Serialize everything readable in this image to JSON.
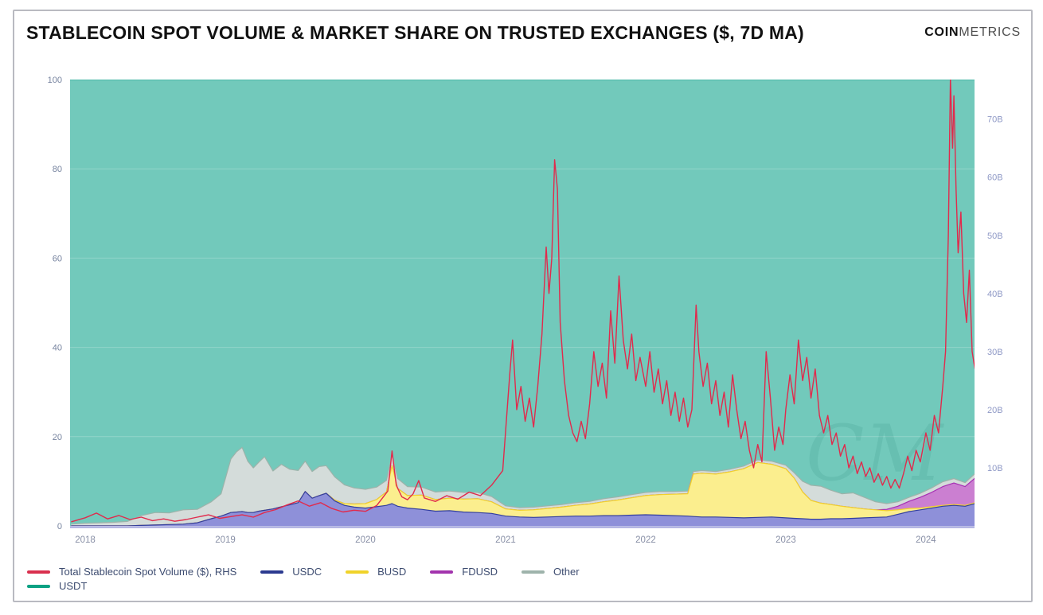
{
  "header": {
    "title": "STABLECOIN SPOT VOLUME & MARKET SHARE ON TRUSTED EXCHANGES ($, 7D MA)",
    "logo_bold": "COIN",
    "logo_light": "METRICS"
  },
  "legend": {
    "rows": [
      [
        {
          "label": "Total Stablecoin Spot Volume ($), RHS",
          "color": "#d9304e"
        },
        {
          "label": "USDC",
          "color": "#2b3a8f"
        },
        {
          "label": "BUSD",
          "color": "#f0d32a"
        },
        {
          "label": "FDUSD",
          "color": "#a234ad"
        },
        {
          "label": "Other",
          "color": "#9eb3ab"
        }
      ],
      [
        {
          "label": "USDT",
          "color": "#0ba183"
        }
      ]
    ]
  },
  "chart_data": {
    "type": "area",
    "subtype": "stacked-area-with-line",
    "title": "STABLECOIN SPOT VOLUME & MARKET SHARE ON TRUSTED EXCHANGES ($, 7D MA)",
    "watermark": "CM",
    "grid": "faint horizontal at 20/40/60/80",
    "legend_position": "bottom-left",
    "x_domain": [
      2017.892,
      2024.347
    ],
    "x_ticks": [
      2018,
      2019,
      2020,
      2021,
      2022,
      2023,
      2024
    ],
    "y_left": {
      "unit": "percent market share",
      "min": 0,
      "max": 100,
      "ticks": [
        0,
        20,
        40,
        60,
        80,
        100
      ]
    },
    "y_right": {
      "unit": "USD volume",
      "min": 0,
      "max": 76.8,
      "ticks": [
        10,
        20,
        30,
        40,
        50,
        60,
        70
      ],
      "tick_labels": [
        "10B",
        "20B",
        "30B",
        "40B",
        "50B",
        "60B",
        "70B"
      ]
    },
    "colors": {
      "usdt_fill": "#72c9bb",
      "usdt_stroke": "#2fae99",
      "usdc_fill": "#8e90d9",
      "usdc_stroke": "#333f9e",
      "busd_fill": "#fbee8e",
      "busd_stroke": "#f2d22b",
      "fdusd_fill": "#cb7fd1",
      "fdusd_stroke": "#a62fb3",
      "other_fill": "#d4dcda",
      "other_stroke": "#9cb3aa",
      "volume_line": "#e12a4c",
      "axis_text_left": "#76839f",
      "axis_text_right": "#8f99c6",
      "axis_text_x": "#888fa6",
      "axis_line": "#a9abdf"
    },
    "share_x": [
      2017.9,
      2018.0,
      2018.1,
      2018.2,
      2018.3,
      2018.4,
      2018.5,
      2018.6,
      2018.7,
      2018.8,
      2018.9,
      2018.97,
      2019.04,
      2019.08,
      2019.12,
      2019.16,
      2019.2,
      2019.24,
      2019.28,
      2019.34,
      2019.4,
      2019.46,
      2019.52,
      2019.57,
      2019.62,
      2019.67,
      2019.72,
      2019.78,
      2019.85,
      2019.92,
      2020.0,
      2020.08,
      2020.15,
      2020.19,
      2020.23,
      2020.3,
      2020.4,
      2020.5,
      2020.6,
      2020.7,
      2020.8,
      2020.9,
      2021.0,
      2021.1,
      2021.2,
      2021.3,
      2021.4,
      2021.5,
      2021.6,
      2021.7,
      2021.8,
      2021.9,
      2022.0,
      2022.1,
      2022.2,
      2022.3,
      2022.34,
      2022.4,
      2022.5,
      2022.6,
      2022.7,
      2022.8,
      2022.9,
      2023.0,
      2023.06,
      2023.12,
      2023.18,
      2023.25,
      2023.32,
      2023.4,
      2023.48,
      2023.56,
      2023.64,
      2023.72,
      2023.8,
      2023.88,
      2023.96,
      2024.04,
      2024.12,
      2024.2,
      2024.28,
      2024.35
    ],
    "share_series": [
      {
        "name": "USDC",
        "stack_order": 1,
        "values": [
          0,
          0,
          0,
          0,
          0,
          0.1,
          0.2,
          0.3,
          0.4,
          0.7,
          1.6,
          2.2,
          3.0,
          3.1,
          3.2,
          3.0,
          3.0,
          3.3,
          3.5,
          3.8,
          4.3,
          4.7,
          5.2,
          7.7,
          6.2,
          6.8,
          7.3,
          5.6,
          4.6,
          4.2,
          4.0,
          4.3,
          4.6,
          5.0,
          4.4,
          4.0,
          3.7,
          3.3,
          3.4,
          3.1,
          3.0,
          2.8,
          2.2,
          2.0,
          1.9,
          2.0,
          2.1,
          2.2,
          2.2,
          2.3,
          2.3,
          2.4,
          2.5,
          2.4,
          2.3,
          2.2,
          2.1,
          2.0,
          2.0,
          1.9,
          1.8,
          1.9,
          2.0,
          1.8,
          1.7,
          1.6,
          1.5,
          1.5,
          1.6,
          1.6,
          1.7,
          1.8,
          1.9,
          2.0,
          2.6,
          3.2,
          3.6,
          4.0,
          4.4,
          4.6,
          4.4,
          5.0
        ]
      },
      {
        "name": "BUSD",
        "stack_order": 2,
        "values": [
          0,
          0,
          0,
          0,
          0,
          0,
          0,
          0,
          0,
          0,
          0,
          0,
          0,
          0,
          0,
          0,
          0,
          0,
          0,
          0,
          0,
          0,
          0,
          0,
          0,
          0,
          0,
          0.2,
          0.4,
          0.7,
          1.0,
          1.6,
          3.0,
          8.5,
          4.0,
          2.8,
          3.2,
          2.6,
          2.8,
          2.9,
          3.1,
          2.6,
          1.6,
          1.5,
          1.7,
          1.9,
          2.1,
          2.4,
          2.7,
          3.1,
          3.5,
          3.9,
          4.3,
          4.6,
          4.8,
          5.0,
          9.5,
          9.8,
          9.6,
          10.2,
          11.0,
          12.3,
          11.8,
          11.0,
          9.0,
          6.0,
          4.2,
          3.6,
          3.2,
          2.8,
          2.4,
          2.0,
          1.7,
          1.4,
          1.0,
          0.7,
          0.4,
          0.3,
          0.2,
          0.2,
          0.2,
          0.2
        ]
      },
      {
        "name": "FDUSD",
        "stack_order": 3,
        "values": [
          0,
          0,
          0,
          0,
          0,
          0,
          0,
          0,
          0,
          0,
          0,
          0,
          0,
          0,
          0,
          0,
          0,
          0,
          0,
          0,
          0,
          0,
          0,
          0,
          0,
          0,
          0,
          0,
          0,
          0,
          0,
          0,
          0,
          0,
          0,
          0,
          0,
          0,
          0,
          0,
          0,
          0,
          0,
          0,
          0,
          0,
          0,
          0,
          0,
          0,
          0,
          0,
          0,
          0,
          0,
          0,
          0,
          0,
          0,
          0,
          0,
          0,
          0,
          0,
          0,
          0,
          0,
          0,
          0,
          0,
          0,
          0,
          0,
          0.3,
          0.8,
          1.6,
          2.4,
          3.2,
          4.2,
          4.8,
          4.2,
          5.5
        ]
      },
      {
        "name": "Other",
        "stack_order": 4,
        "values": [
          0.4,
          0.6,
          0.7,
          0.8,
          1.0,
          2.2,
          2.8,
          2.6,
          3.2,
          3.0,
          3.8,
          5.0,
          12.0,
          13.5,
          14.4,
          11.5,
          10.0,
          11.0,
          12.0,
          8.5,
          9.5,
          8.0,
          7.2,
          6.8,
          6.0,
          6.5,
          6.2,
          5.2,
          4.2,
          3.6,
          3.2,
          2.8,
          2.6,
          2.5,
          2.2,
          2.0,
          1.8,
          1.7,
          1.6,
          1.5,
          1.4,
          1.2,
          0.7,
          0.6,
          0.6,
          0.6,
          0.6,
          0.6,
          0.6,
          0.7,
          0.7,
          0.7,
          0.7,
          0.7,
          0.6,
          0.6,
          0.6,
          0.6,
          0.6,
          0.6,
          0.6,
          0.6,
          0.7,
          0.8,
          1.2,
          2.4,
          3.4,
          3.8,
          3.2,
          2.8,
          3.3,
          2.6,
          1.8,
          1.3,
          1.0,
          0.9,
          0.9,
          1.0,
          1.1,
          1.0,
          0.9,
          1.0
        ]
      },
      {
        "name": "USDT",
        "stack_order": 5,
        "note": "fills remainder of stack up to 100%"
      }
    ],
    "volume_series": {
      "name": "Total Stablecoin Spot Volume ($), RHS",
      "axis": "right",
      "unit": "billion USD",
      "x": [
        2017.9,
        2018.0,
        2018.08,
        2018.16,
        2018.24,
        2018.32,
        2018.4,
        2018.48,
        2018.56,
        2018.64,
        2018.72,
        2018.8,
        2018.88,
        2018.96,
        2019.04,
        2019.12,
        2019.2,
        2019.28,
        2019.36,
        2019.44,
        2019.52,
        2019.6,
        2019.68,
        2019.76,
        2019.84,
        2019.92,
        2020.0,
        2020.08,
        2020.16,
        2020.19,
        2020.22,
        2020.26,
        2020.3,
        2020.34,
        2020.38,
        2020.42,
        2020.5,
        2020.58,
        2020.66,
        2020.74,
        2020.82,
        2020.9,
        2020.98,
        2021.03,
        2021.05,
        2021.08,
        2021.11,
        2021.14,
        2021.17,
        2021.2,
        2021.23,
        2021.26,
        2021.29,
        2021.31,
        2021.33,
        2021.35,
        2021.37,
        2021.39,
        2021.42,
        2021.45,
        2021.48,
        2021.51,
        2021.54,
        2021.57,
        2021.6,
        2021.63,
        2021.66,
        2021.69,
        2021.72,
        2021.75,
        2021.78,
        2021.81,
        2021.84,
        2021.87,
        2021.9,
        2021.93,
        2021.96,
        2022.0,
        2022.03,
        2022.06,
        2022.09,
        2022.12,
        2022.15,
        2022.18,
        2022.21,
        2022.24,
        2022.27,
        2022.3,
        2022.33,
        2022.36,
        2022.38,
        2022.41,
        2022.44,
        2022.47,
        2022.5,
        2022.53,
        2022.56,
        2022.59,
        2022.62,
        2022.65,
        2022.68,
        2022.71,
        2022.74,
        2022.77,
        2022.8,
        2022.83,
        2022.86,
        2022.89,
        2022.92,
        2022.95,
        2022.98,
        2023.0,
        2023.03,
        2023.06,
        2023.09,
        2023.12,
        2023.15,
        2023.18,
        2023.21,
        2023.24,
        2023.27,
        2023.3,
        2023.33,
        2023.36,
        2023.39,
        2023.42,
        2023.45,
        2023.48,
        2023.51,
        2023.54,
        2023.57,
        2023.6,
        2023.63,
        2023.66,
        2023.69,
        2023.72,
        2023.75,
        2023.78,
        2023.81,
        2023.84,
        2023.87,
        2023.9,
        2023.93,
        2023.96,
        2024.0,
        2024.03,
        2024.06,
        2024.09,
        2024.12,
        2024.14,
        2024.16,
        2024.175,
        2024.19,
        2024.2,
        2024.215,
        2024.23,
        2024.25,
        2024.27,
        2024.29,
        2024.31,
        2024.33,
        2024.35
      ],
      "values": [
        0.7,
        1.4,
        2.2,
        1.2,
        1.8,
        1.1,
        1.5,
        0.9,
        1.2,
        0.8,
        1.1,
        1.5,
        1.9,
        1.3,
        1.6,
        1.9,
        1.5,
        2.3,
        2.8,
        3.6,
        4.3,
        3.4,
        4.0,
        3.0,
        2.4,
        2.7,
        2.5,
        3.5,
        6.0,
        12.9,
        7.0,
        5.0,
        4.5,
        5.5,
        7.8,
        4.8,
        4.2,
        5.2,
        4.6,
        5.8,
        5.2,
        7.0,
        9.5,
        26,
        32,
        20,
        24,
        18,
        22,
        17,
        24,
        33,
        48,
        40,
        46,
        63,
        58,
        35,
        25,
        19,
        16,
        14.5,
        18,
        15,
        21,
        30,
        24,
        28,
        22,
        37,
        28,
        43,
        32,
        27,
        33,
        25,
        29,
        24,
        30,
        23,
        27,
        21,
        25,
        19,
        23,
        18,
        22,
        17,
        20,
        38,
        30,
        24,
        28,
        21,
        25,
        19,
        23,
        17,
        26,
        20,
        15,
        18,
        13,
        10,
        14,
        11,
        30,
        22,
        13,
        17,
        14,
        20,
        26,
        21,
        32,
        25,
        29,
        22,
        27,
        19,
        16,
        19,
        14,
        16,
        12,
        14,
        10,
        12,
        9,
        11,
        8.5,
        10,
        7.5,
        9,
        7,
        8.5,
        6.5,
        8,
        6.5,
        9,
        12,
        9.5,
        13,
        11,
        16,
        13,
        19,
        16,
        24,
        30,
        50,
        77,
        65,
        74,
        58,
        47,
        54,
        40,
        35,
        44,
        30,
        27
      ]
    }
  }
}
